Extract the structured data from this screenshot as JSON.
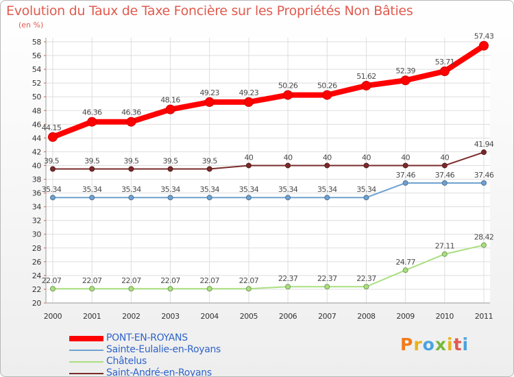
{
  "title": "Evolution du Taux de Taxe Foncière sur les Propriétés Non Bâties",
  "unit": "(en %)",
  "logo": "Proxiti",
  "colors": {
    "title": "#e05a4e",
    "legend_text": "#2f63c9"
  },
  "chart_data": {
    "type": "line",
    "title": "Evolution du Taux de Taxe Foncière sur les Propriétés Non Bâties",
    "ylabel": "(en %)",
    "xlabel": "",
    "categories": [
      "2000",
      "2001",
      "2002",
      "2003",
      "2004",
      "2005",
      "2006",
      "2007",
      "2008",
      "2009",
      "2010",
      "2011"
    ],
    "ylim": [
      20,
      58
    ],
    "yticks": [
      20,
      22,
      24,
      26,
      28,
      30,
      32,
      34,
      36,
      38,
      40,
      42,
      44,
      46,
      48,
      50,
      52,
      54,
      56,
      58
    ],
    "grid": true,
    "legend_position": "bottom-left",
    "series": [
      {
        "name": "PONT-EN-ROYANS",
        "color": "#ff0000",
        "emphasis": true,
        "values": [
          44.15,
          46.36,
          46.36,
          48.16,
          49.23,
          49.23,
          50.26,
          50.26,
          51.62,
          52.39,
          53.71,
          57.43
        ],
        "labels": [
          "44.15",
          "46.36",
          "46.36",
          "48.16",
          "49.23",
          "49.23",
          "50.26",
          "50.26",
          "51.62",
          "52.39",
          "53.71",
          "57.43"
        ]
      },
      {
        "name": "Sainte-Eulalie-en-Royans",
        "color": "#6fa1d0",
        "emphasis": false,
        "values": [
          35.34,
          35.34,
          35.34,
          35.34,
          35.34,
          35.34,
          35.34,
          35.34,
          35.34,
          37.46,
          37.46,
          37.46
        ],
        "labels": [
          "35.34",
          "35.34",
          "35.34",
          "35.34",
          "35.34",
          "35.34",
          "35.34",
          "35.34",
          "35.34",
          "37.46",
          "37.46",
          "37.46"
        ]
      },
      {
        "name": "Châtelus",
        "color": "#a9df7f",
        "emphasis": false,
        "values": [
          22.07,
          22.07,
          22.07,
          22.07,
          22.07,
          22.07,
          22.37,
          22.37,
          22.37,
          24.77,
          27.11,
          28.42
        ],
        "labels": [
          "22.07",
          "22.07",
          "22.07",
          "22.07",
          "22.07",
          "22.07",
          "22.37",
          "22.37",
          "22.37",
          "24.77",
          "27.11",
          "28.42"
        ]
      },
      {
        "name": "Saint-André-en-Royans",
        "color": "#7a2a2a",
        "emphasis": false,
        "values": [
          39.5,
          39.5,
          39.5,
          39.5,
          39.5,
          40,
          40,
          40,
          40,
          40,
          40,
          41.94
        ],
        "labels": [
          "39.5",
          "39.5",
          "39.5",
          "39.5",
          "39.5",
          "40",
          "40",
          "40",
          "40",
          "40",
          "40",
          "41.94"
        ]
      }
    ]
  }
}
